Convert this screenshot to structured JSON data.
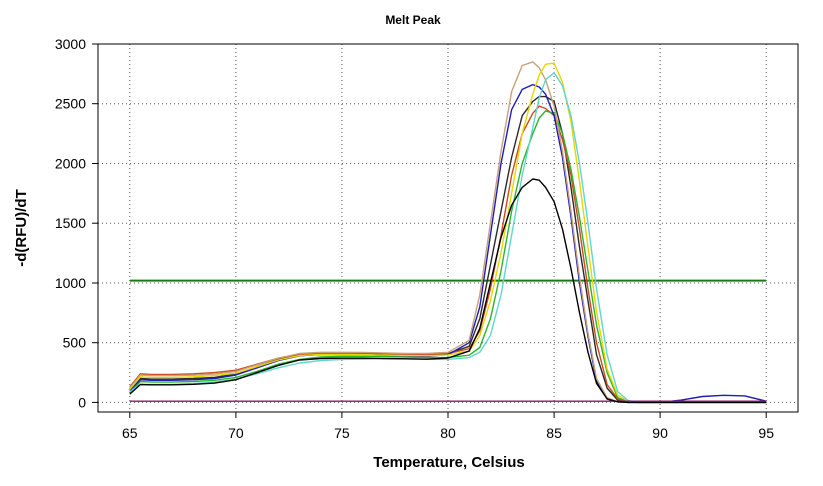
{
  "chart_data": {
    "type": "line",
    "title": "Melt Peak",
    "xlabel": "Temperature, Celsius",
    "ylabel": "-d(RFU)/dT",
    "xlim": [
      63.5,
      96.5
    ],
    "ylim": [
      -80,
      3000
    ],
    "xticks": [
      65,
      70,
      75,
      80,
      85,
      90,
      95
    ],
    "yticks": [
      0,
      500,
      1000,
      1500,
      2000,
      2500,
      3000
    ],
    "grid": true,
    "grid_style": "dotted",
    "legend": "none",
    "threshold": {
      "value": 1020,
      "x_range": [
        65,
        95
      ],
      "color": "#1a7a1a"
    },
    "x": [
      65,
      65.5,
      66,
      67,
      68,
      69,
      70,
      71,
      72,
      73,
      74,
      75,
      76,
      77,
      78,
      79,
      80,
      81,
      81.5,
      82,
      82.5,
      83,
      83.5,
      84,
      84.3,
      84.6,
      85,
      85.4,
      85.8,
      86.2,
      86.6,
      87,
      87.5,
      88,
      88.5,
      89,
      90,
      91,
      92,
      93,
      94,
      95
    ],
    "series": [
      {
        "color": "#2a2a2a",
        "values": [
          100,
          200,
          195,
          195,
          200,
          210,
          240,
          300,
          360,
          400,
          410,
          410,
          410,
          405,
          400,
          400,
          410,
          470,
          700,
          1150,
          1600,
          2050,
          2400,
          2520,
          2560,
          2560,
          2520,
          2250,
          1800,
          1300,
          850,
          400,
          120,
          20,
          5,
          0,
          0,
          0,
          0,
          0,
          0,
          0
        ]
      },
      {
        "color": "#cc4a1e",
        "values": [
          130,
          240,
          235,
          235,
          240,
          250,
          270,
          320,
          370,
          400,
          410,
          410,
          405,
          400,
          400,
          400,
          410,
          450,
          600,
          950,
          1400,
          1900,
          2250,
          2420,
          2480,
          2460,
          2400,
          2200,
          1900,
          1450,
          950,
          500,
          150,
          30,
          5,
          0,
          0,
          0,
          0,
          0,
          0,
          0
        ]
      },
      {
        "color": "#2bb52b",
        "values": [
          80,
          175,
          170,
          170,
          175,
          185,
          210,
          260,
          320,
          360,
          380,
          385,
          385,
          385,
          380,
          375,
          375,
          395,
          460,
          700,
          1100,
          1600,
          2000,
          2250,
          2380,
          2440,
          2420,
          2250,
          1950,
          1550,
          1100,
          650,
          250,
          40,
          5,
          0,
          0,
          0,
          0,
          0,
          0,
          0
        ]
      },
      {
        "color": "#1c1cb8",
        "values": [
          100,
          190,
          185,
          185,
          190,
          200,
          230,
          290,
          350,
          390,
          400,
          400,
          400,
          395,
          390,
          385,
          400,
          500,
          800,
          1400,
          2000,
          2450,
          2620,
          2660,
          2640,
          2580,
          2400,
          2050,
          1550,
          1000,
          550,
          180,
          30,
          5,
          0,
          0,
          0,
          20,
          50,
          60,
          55,
          10
        ]
      },
      {
        "color": "#c8a07a",
        "values": [
          120,
          230,
          225,
          225,
          228,
          238,
          260,
          315,
          370,
          410,
          420,
          420,
          418,
          414,
          410,
          410,
          420,
          520,
          900,
          1500,
          2100,
          2600,
          2820,
          2850,
          2800,
          2700,
          2480,
          2100,
          1600,
          1050,
          580,
          200,
          40,
          5,
          0,
          0,
          0,
          0,
          0,
          0,
          0,
          0
        ]
      },
      {
        "color": "#e6d600",
        "values": [
          110,
          215,
          210,
          210,
          215,
          225,
          245,
          300,
          355,
          392,
          402,
          402,
          400,
          396,
          392,
          390,
          398,
          430,
          560,
          850,
          1250,
          1750,
          2250,
          2580,
          2740,
          2830,
          2840,
          2680,
          2350,
          1850,
          1300,
          760,
          280,
          60,
          10,
          0,
          0,
          0,
          0,
          0,
          0,
          0
        ]
      },
      {
        "color": "#5fd6cc",
        "values": [
          90,
          150,
          150,
          152,
          158,
          170,
          195,
          240,
          290,
          330,
          350,
          360,
          362,
          365,
          365,
          362,
          360,
          375,
          420,
          560,
          900,
          1400,
          1900,
          2300,
          2550,
          2700,
          2760,
          2650,
          2400,
          2000,
          1500,
          950,
          400,
          90,
          15,
          0,
          0,
          0,
          0,
          0,
          0,
          0
        ]
      },
      {
        "color": "#8b1a6b",
        "values": [
          10,
          10,
          10,
          10,
          10,
          10,
          10,
          10,
          10,
          10,
          10,
          10,
          10,
          10,
          10,
          10,
          10,
          10,
          10,
          10,
          10,
          10,
          10,
          10,
          10,
          10,
          10,
          10,
          10,
          10,
          10,
          10,
          10,
          10,
          10,
          10,
          10,
          10,
          10,
          10,
          10,
          10
        ]
      },
      {
        "color": "#000000",
        "values": [
          70,
          150,
          148,
          148,
          152,
          162,
          190,
          250,
          310,
          355,
          368,
          370,
          370,
          368,
          365,
          362,
          372,
          430,
          620,
          1000,
          1380,
          1650,
          1800,
          1870,
          1860,
          1800,
          1680,
          1450,
          1120,
          750,
          420,
          160,
          30,
          5,
          0,
          0,
          0,
          0,
          0,
          0,
          0,
          0
        ]
      }
    ]
  }
}
